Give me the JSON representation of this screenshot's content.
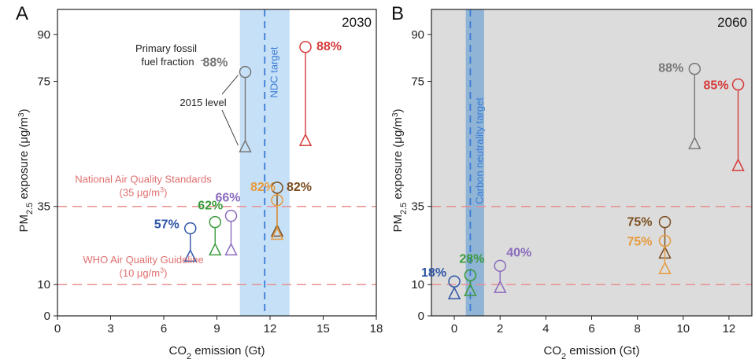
{
  "colors": {
    "blue": "#2e55a6",
    "green": "#3a9a3a",
    "purple": "#8b6bbd",
    "orange": "#e79a3c",
    "brown": "#7a4d1e",
    "grey": "#777777",
    "red": "#d63a3a",
    "reference_line": "#e89090",
    "band_A": "#c6e0f7",
    "band_B": "#8fb4d6",
    "target_line": "#3a7bd5",
    "panel_bg_B": "#dcdcdc"
  },
  "chart_data": [
    {
      "type": "scatter",
      "panel": "A",
      "year_label": "2030",
      "xlabel_main": "CO",
      "xlabel_sub": "2",
      "xlabel_rest": " emission (Gt)",
      "ylabel_main": "PM",
      "ylabel_sub": "2.5",
      "ylabel_rest": " exposure (μg/m",
      "ylabel_sup": "3",
      "ylabel_close": ")",
      "xlim": [
        0,
        18
      ],
      "ylim": [
        0,
        98
      ],
      "xticks": [
        0,
        3,
        6,
        9,
        12,
        15,
        18
      ],
      "xtick_labels": [
        "0",
        "3",
        "6",
        "9",
        "12",
        "15",
        "18"
      ],
      "yticks": [
        0,
        10,
        35,
        75,
        90
      ],
      "ytick_labels": [
        "0",
        "10",
        "35",
        "75",
        "90"
      ],
      "band": {
        "x0": 10.3,
        "x1": 13.1,
        "target_x": 11.7,
        "label": "NDC target",
        "color_key": "band_A"
      },
      "reference_lines": [
        {
          "y": 35,
          "label_line1": "National Air Quality Standards",
          "label_line2_pre": "(35 μg/m",
          "label_line2_sup": "3",
          "label_line2_post": ")"
        },
        {
          "y": 10,
          "label_line1": "WHO Air Quality Guideline",
          "label_line2_pre": "(10 μg/m",
          "label_line2_sup": "3",
          "label_line2_post": ")"
        }
      ],
      "series": [
        {
          "color_key": "blue",
          "x": 7.5,
          "y_top": 28,
          "y_bottom": 19,
          "label": "57%"
        },
        {
          "color_key": "green",
          "x": 8.9,
          "y_top": 30,
          "y_bottom": 21,
          "label": "62%"
        },
        {
          "color_key": "purple",
          "x": 9.8,
          "y_top": 32,
          "y_bottom": 21,
          "label": "66%"
        },
        {
          "color_key": "grey",
          "x": 10.6,
          "y_top": 78,
          "y_bottom": 54,
          "label": "88%"
        },
        {
          "color_key": "brown",
          "x": 12.4,
          "y_top": 41,
          "y_bottom": 27,
          "label": "82%"
        },
        {
          "color_key": "orange",
          "x": 12.4,
          "y_top": 37,
          "y_bottom": 26,
          "label": "82%"
        },
        {
          "color_key": "red",
          "x": 14.0,
          "y_top": 86,
          "y_bottom": 56,
          "label": "88%"
        }
      ],
      "annotations": {
        "fossil_line1": "Primary fossil",
        "fossil_line2": "fuel fraction",
        "level_2015": "2015 level"
      }
    },
    {
      "type": "scatter",
      "panel": "B",
      "year_label": "2060",
      "xlabel_main": "CO",
      "xlabel_sub": "2",
      "xlabel_rest": " emission (Gt)",
      "ylabel_main": "PM",
      "ylabel_sub": "2.5",
      "ylabel_rest": " exposure (μg/m",
      "ylabel_sup": "3",
      "ylabel_close": ")",
      "xlim": [
        -1,
        13
      ],
      "ylim": [
        0,
        98
      ],
      "xticks": [
        0,
        2,
        4,
        6,
        8,
        10,
        12
      ],
      "xtick_labels": [
        "0",
        "2",
        "4",
        "6",
        "8",
        "10",
        "12"
      ],
      "yticks": [
        0,
        10,
        35,
        75,
        90
      ],
      "ytick_labels": [
        "0",
        "10",
        "35",
        "75",
        "90"
      ],
      "band": {
        "x0": 0.5,
        "x1": 1.3,
        "target_x": 0.7,
        "label": "Carbon neutrality target",
        "color_key": "band_B"
      },
      "reference_lines": [
        {
          "y": 35
        },
        {
          "y": 10
        }
      ],
      "series": [
        {
          "color_key": "blue",
          "x": 0.0,
          "y_top": 11,
          "y_bottom": 7,
          "label": "18%"
        },
        {
          "color_key": "green",
          "x": 0.7,
          "y_top": 13,
          "y_bottom": 8,
          "label": "28%"
        },
        {
          "color_key": "purple",
          "x": 2.0,
          "y_top": 16,
          "y_bottom": 9,
          "label": "40%"
        },
        {
          "color_key": "brown",
          "x": 9.2,
          "y_top": 30,
          "y_bottom": 20,
          "label": "75%"
        },
        {
          "color_key": "orange",
          "x": 9.2,
          "y_top": 24,
          "y_bottom": 15,
          "label": "75%"
        },
        {
          "color_key": "grey",
          "x": 10.5,
          "y_top": 79,
          "y_bottom": 55,
          "label": "88%"
        },
        {
          "color_key": "red",
          "x": 12.4,
          "y_top": 74,
          "y_bottom": 48,
          "label": "85%"
        }
      ]
    }
  ]
}
